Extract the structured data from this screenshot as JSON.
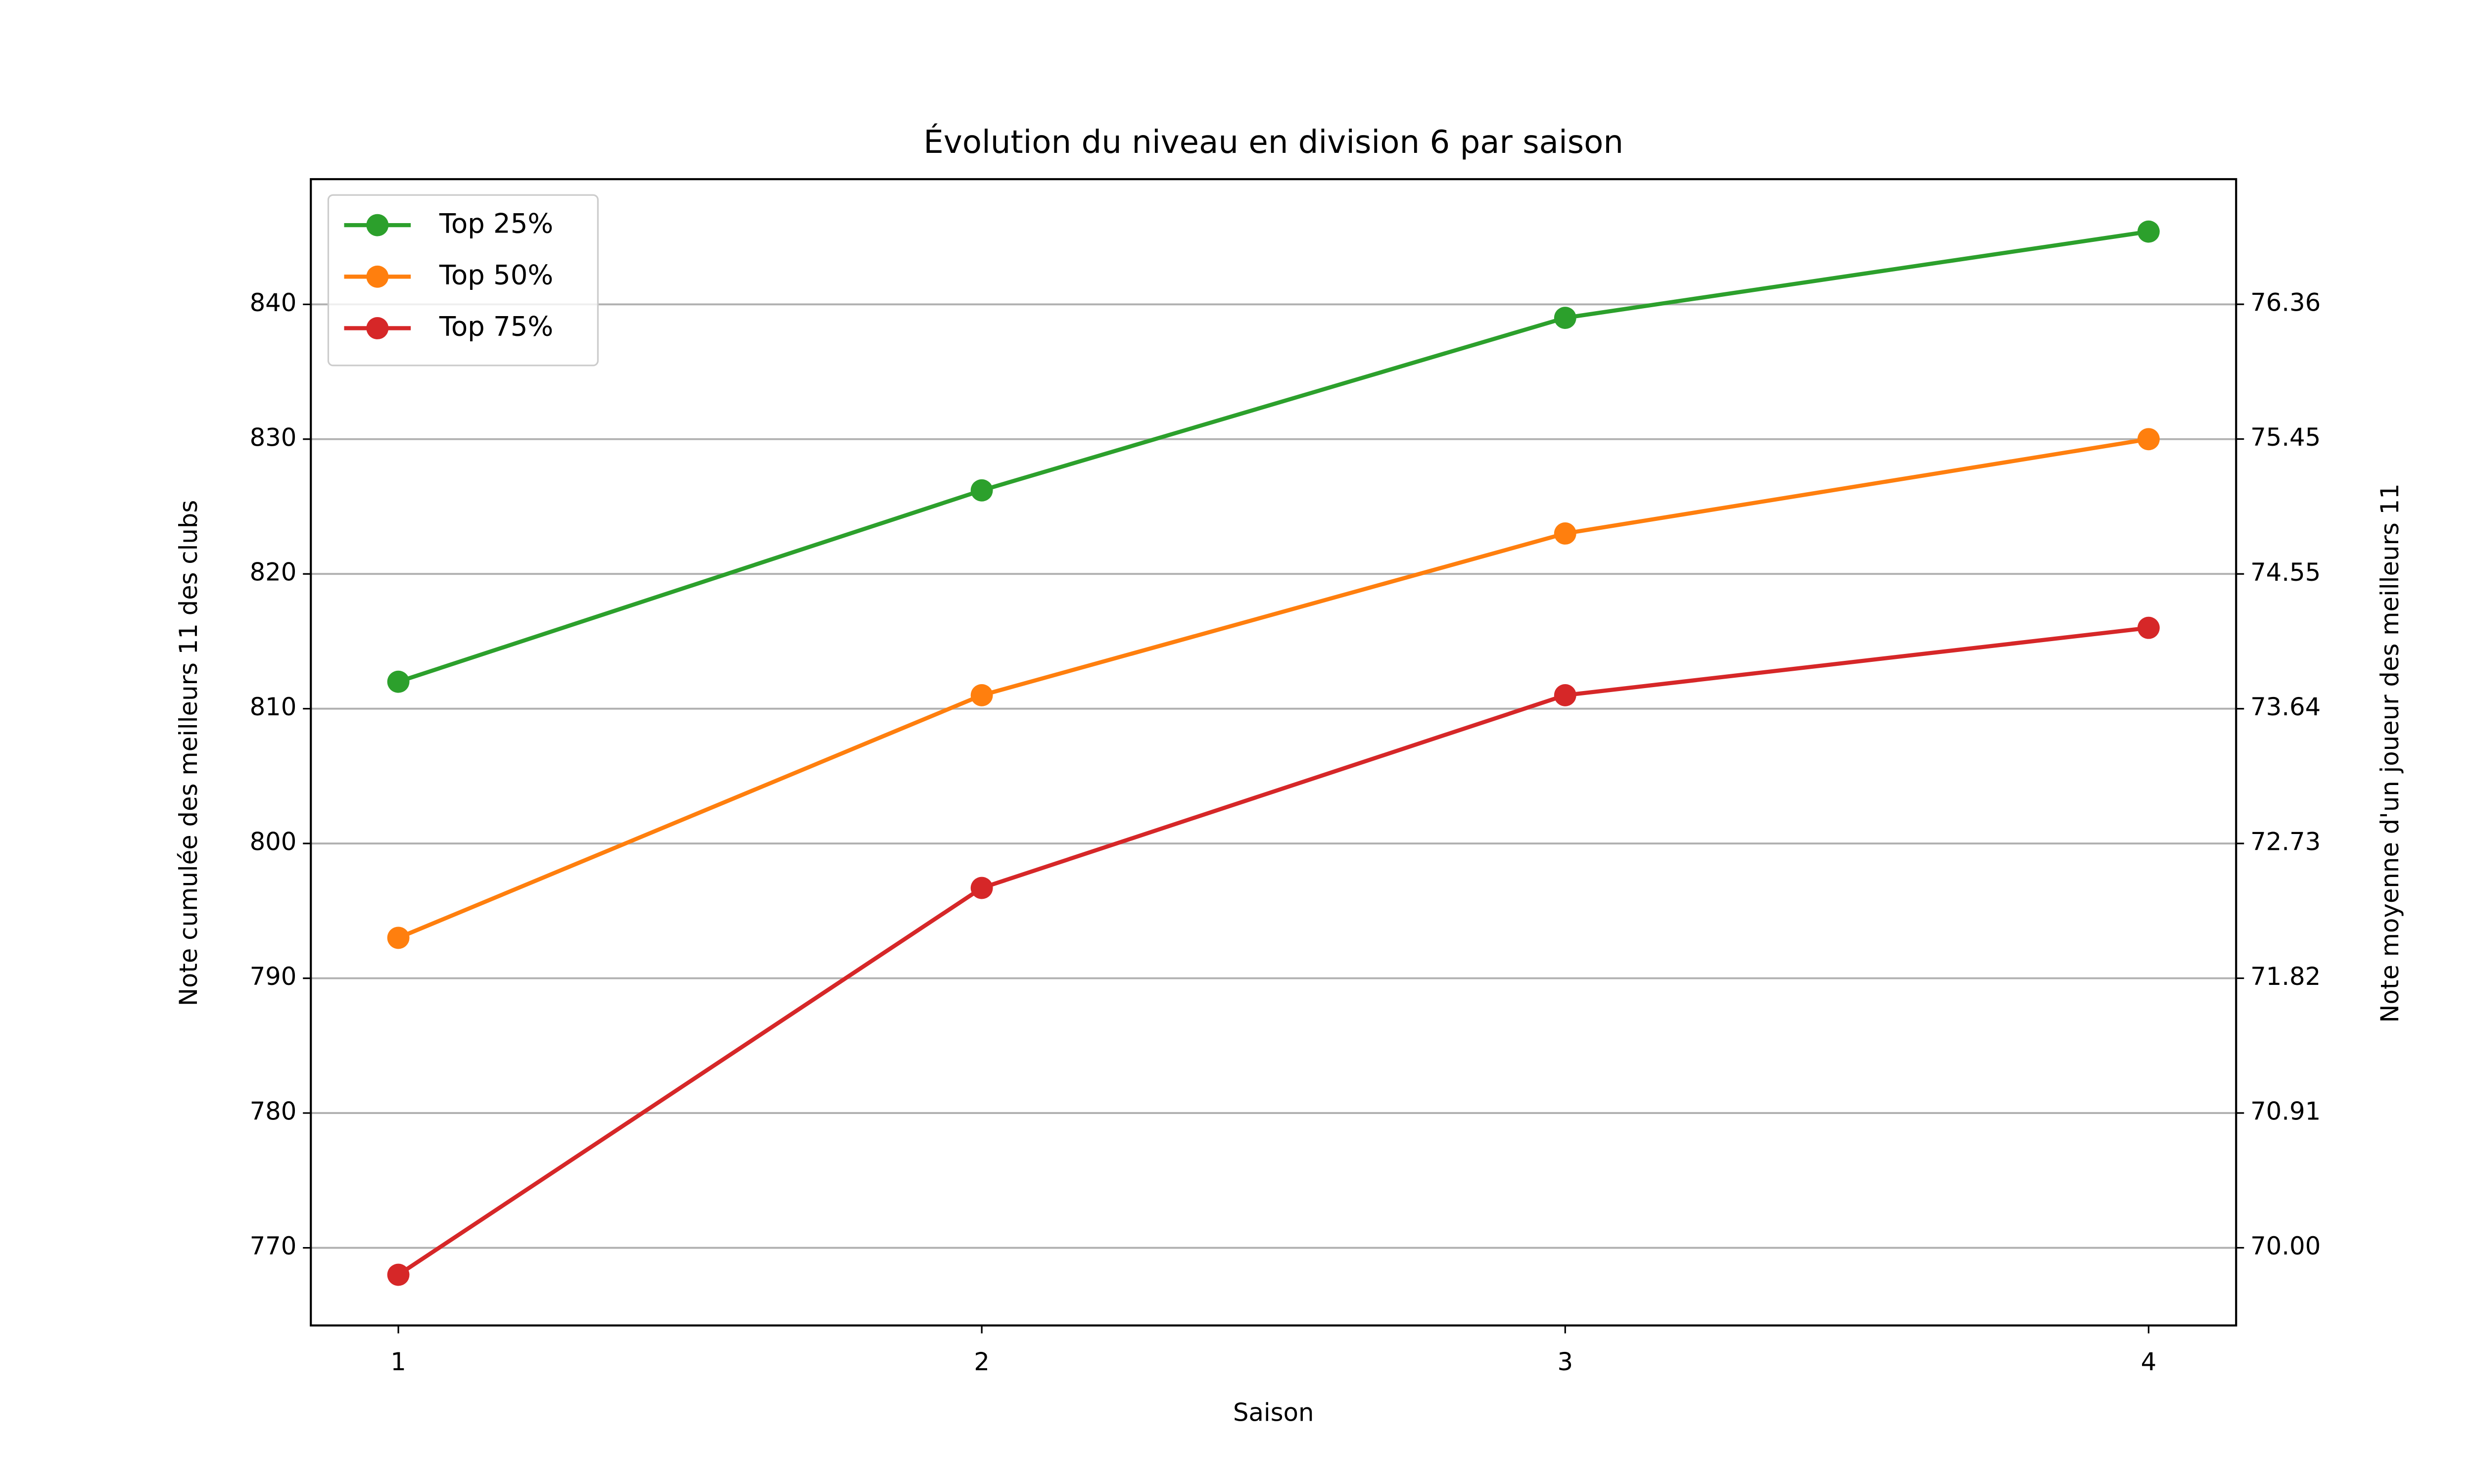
{
  "chart_data": {
    "type": "line",
    "title": "Évolution du niveau en division 6 par saison",
    "xlabel": "Saison",
    "ylabel": "Note cumulée des meilleurs 11 des clubs",
    "y2label": "Note moyenne d'un joueur des meilleurs 11",
    "x": [
      1,
      2,
      3,
      4
    ],
    "xlim": [
      0.85,
      4.15
    ],
    "xticks": [
      1,
      2,
      3,
      4
    ],
    "ylim": [
      764.24,
      849.29
    ],
    "yticks": [
      770,
      780,
      790,
      800,
      810,
      820,
      830,
      840
    ],
    "y2lim": [
      69.476,
      77.208
    ],
    "y2ticks": [
      {
        "value": 70.0,
        "label": "70.00"
      },
      {
        "value": 70.909,
        "label": "70.91"
      },
      {
        "value": 71.818,
        "label": "71.82"
      },
      {
        "value": 72.727,
        "label": "72.73"
      },
      {
        "value": 73.636,
        "label": "73.64"
      },
      {
        "value": 74.545,
        "label": "74.55"
      },
      {
        "value": 75.455,
        "label": "75.45"
      },
      {
        "value": 76.364,
        "label": "76.36"
      }
    ],
    "grid": true,
    "legend": "upper left",
    "series": [
      {
        "name": "Top 25%",
        "color": "#2ca02c",
        "values": [
          812,
          826.2,
          839,
          845.4
        ]
      },
      {
        "name": "Top 50%",
        "color": "#ff7f0e",
        "values": [
          793,
          811,
          823,
          830
        ]
      },
      {
        "name": "Top 75%",
        "color": "#d62728",
        "values": [
          768,
          796.7,
          811,
          816
        ]
      }
    ]
  }
}
